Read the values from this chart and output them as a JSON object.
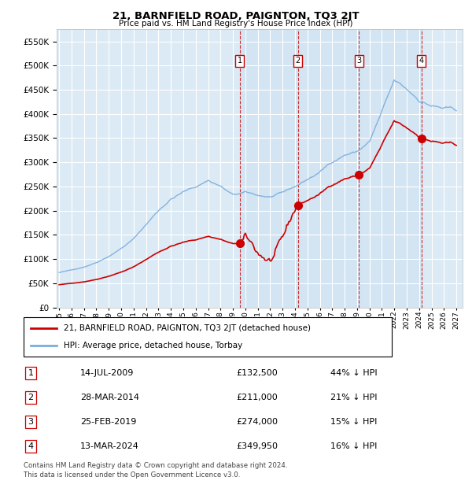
{
  "title": "21, BARNFIELD ROAD, PAIGNTON, TQ3 2JT",
  "subtitle": "Price paid vs. HM Land Registry's House Price Index (HPI)",
  "legend_line1": "21, BARNFIELD ROAD, PAIGNTON, TQ3 2JT (detached house)",
  "legend_line2": "HPI: Average price, detached house, Torbay",
  "footer_line1": "Contains HM Land Registry data © Crown copyright and database right 2024.",
  "footer_line2": "This data is licensed under the Open Government Licence v3.0.",
  "sales": [
    {
      "label": "1",
      "date": "14-JUL-2009",
      "price": 132500,
      "pct": "44%",
      "x_year": 2009.54
    },
    {
      "label": "2",
      "date": "28-MAR-2014",
      "price": 211000,
      "pct": "21%",
      "x_year": 2014.24
    },
    {
      "label": "3",
      "date": "25-FEB-2019",
      "price": 274000,
      "pct": "15%",
      "x_year": 2019.15
    },
    {
      "label": "4",
      "date": "13-MAR-2024",
      "price": 349950,
      "pct": "16%",
      "x_year": 2024.2
    }
  ],
  "ylim": [
    0,
    575000
  ],
  "xlim_start": 1994.8,
  "xlim_end": 2027.5,
  "hpi_color": "#7aaddc",
  "sale_color": "#cc0000",
  "dashed_color": "#cc0000",
  "marker_box_color": "#cc0000",
  "background_color": "#ffffff",
  "grid_color": "#cccccc",
  "shade_color": "#dceaf5"
}
